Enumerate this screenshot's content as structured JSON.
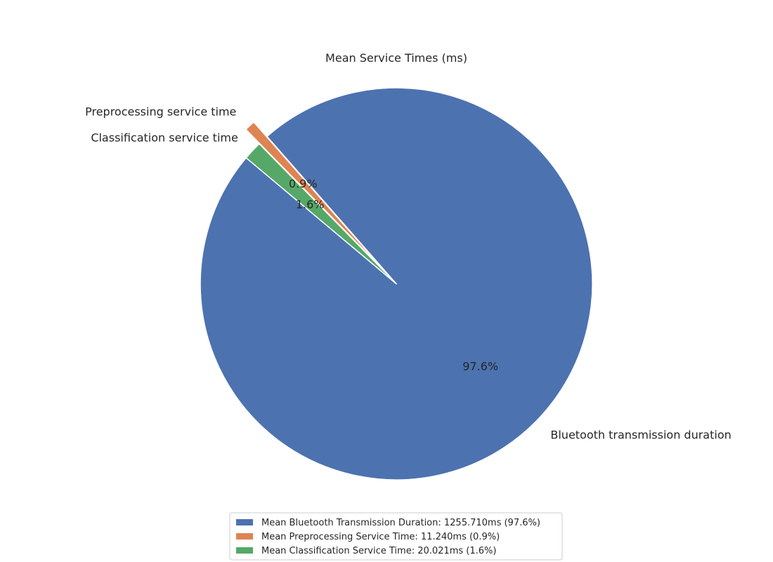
{
  "chart_data": {
    "type": "pie",
    "title": "Mean Service Times (ms)",
    "slices": [
      {
        "label": "Bluetooth transmission duration",
        "value": 1255.71,
        "percent_label": "97.6%",
        "legend": "Mean Bluetooth Transmission Duration: 1255.710ms (97.6%)",
        "color": "#4c72b0",
        "explode": 0
      },
      {
        "label": "Preprocessing service time",
        "value": 11.24,
        "percent_label": "0.9%",
        "legend": "Mean Preprocessing Service Time: 11.240ms (0.9%)",
        "color": "#dd8452",
        "explode": 0.1
      },
      {
        "label": "Classification service time",
        "value": 20.021,
        "percent_label": "1.6%",
        "legend": "Mean Classification Service Time: 20.021ms (1.6%)",
        "color": "#55a868",
        "explode": 0
      }
    ],
    "start_angle_deg": 140,
    "legend_position": "lower-center"
  }
}
